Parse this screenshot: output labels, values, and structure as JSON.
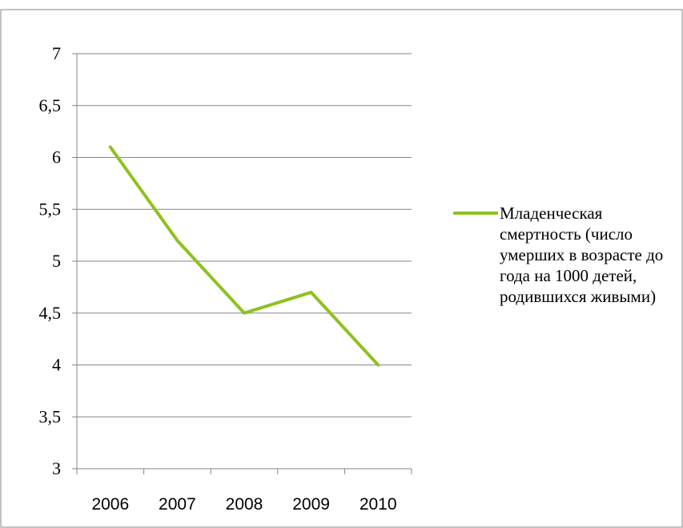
{
  "chart_data": {
    "type": "line",
    "title": "",
    "xlabel": "",
    "ylabel": "",
    "categories": [
      "2006",
      "2007",
      "2008",
      "2009",
      "2010"
    ],
    "series": [
      {
        "name": "Младенческая смертность (число умерших в возрасте до года на 1000 детей, родившихся живыми)",
        "values": [
          6.1,
          5.2,
          4.5,
          4.7,
          4.0
        ],
        "color": "#8dc21f"
      }
    ],
    "ylim": [
      3,
      7
    ],
    "yticks": [
      3,
      3.5,
      4,
      4.5,
      5,
      5.5,
      6,
      6.5,
      7
    ],
    "ytick_labels": [
      "3",
      "3,5",
      "4",
      "4,5",
      "5",
      "5,5",
      "6",
      "6,5",
      "7"
    ],
    "grid": true,
    "legend_position": "right",
    "colors": {
      "grid": "#868686",
      "axis": "#868686",
      "frame": "#868686"
    }
  }
}
